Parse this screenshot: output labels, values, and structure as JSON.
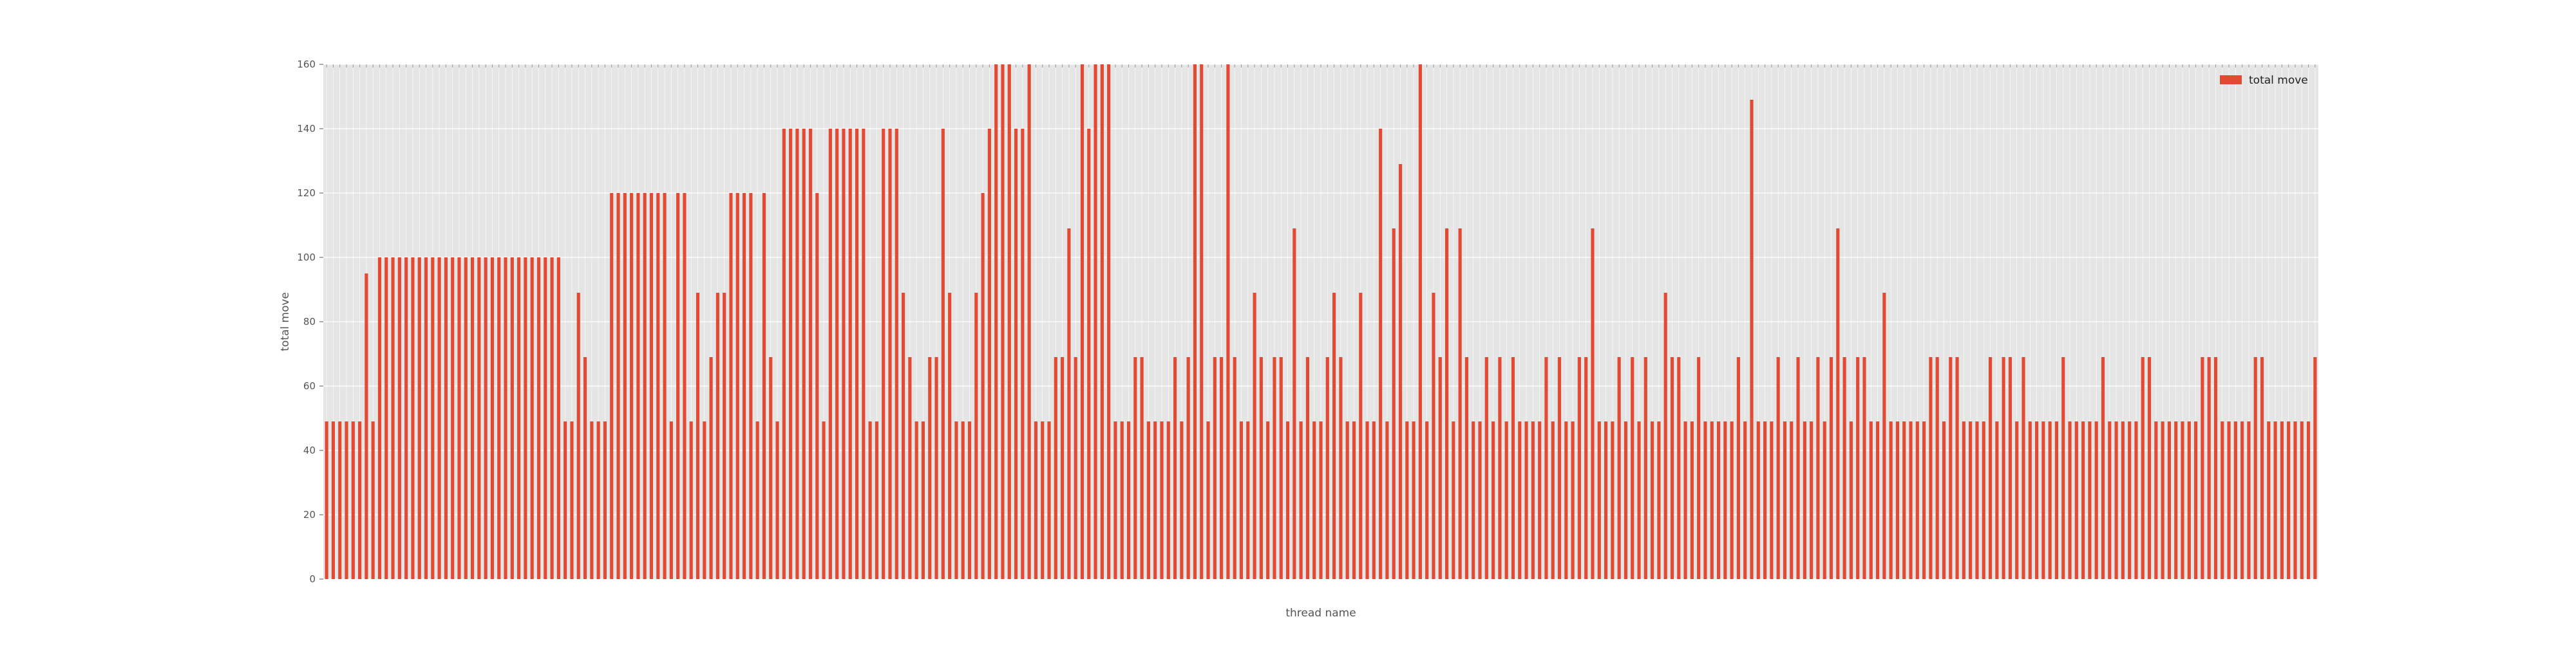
{
  "chart_data": {
    "type": "bar",
    "xlabel": "thread name",
    "ylabel": "total move",
    "ylim": [
      0,
      160
    ],
    "yticks": [
      0,
      20,
      40,
      60,
      80,
      100,
      120,
      140,
      160
    ],
    "grid": true,
    "legend_position": "top-right",
    "series": [
      {
        "name": "total move",
        "color": "#e24a33",
        "values": [
          49,
          49,
          49,
          49,
          49,
          49,
          95,
          49,
          100,
          100,
          100,
          100,
          100,
          100,
          100,
          100,
          100,
          100,
          100,
          100,
          100,
          100,
          100,
          100,
          100,
          100,
          100,
          100,
          100,
          100,
          100,
          100,
          100,
          100,
          100,
          100,
          49,
          49,
          89,
          69,
          49,
          49,
          49,
          120,
          120,
          120,
          120,
          120,
          120,
          120,
          120,
          120,
          49,
          120,
          120,
          49,
          89,
          49,
          69,
          89,
          89,
          120,
          120,
          120,
          120,
          49,
          120,
          69,
          49,
          140,
          140,
          140,
          140,
          140,
          120,
          49,
          140,
          140,
          140,
          140,
          140,
          140,
          49,
          49,
          140,
          140,
          140,
          89,
          69,
          49,
          49,
          69,
          69,
          140,
          89,
          49,
          49,
          49,
          89,
          120,
          140,
          160,
          160,
          160,
          140,
          140,
          160,
          49,
          49,
          49,
          69,
          69,
          109,
          69,
          160,
          140,
          160,
          160,
          160,
          49,
          49,
          49,
          69,
          69,
          49,
          49,
          49,
          49,
          69,
          49,
          69,
          160,
          160,
          49,
          69,
          69,
          160,
          69,
          49,
          49,
          89,
          69,
          49,
          69,
          69,
          49,
          109,
          49,
          69,
          49,
          49,
          69,
          89,
          69,
          49,
          49,
          89,
          49,
          49,
          140,
          49,
          109,
          129,
          49,
          49,
          160,
          49,
          89,
          69,
          109,
          49,
          109,
          69,
          49,
          49,
          69,
          49,
          69,
          49,
          69,
          49,
          49,
          49,
          49,
          69,
          49,
          69,
          49,
          49,
          69,
          69,
          109,
          49,
          49,
          49,
          69,
          49,
          69,
          49,
          69,
          49,
          49,
          89,
          69,
          69,
          49,
          49,
          69,
          49,
          49,
          49,
          49,
          49,
          69,
          49,
          149,
          49,
          49,
          49,
          69,
          49,
          49,
          69,
          49,
          49,
          69,
          49,
          69,
          109,
          69,
          49,
          69,
          69,
          49,
          49,
          89,
          49,
          49,
          49,
          49,
          49,
          49,
          69,
          69,
          49,
          69,
          69,
          49,
          49,
          49,
          49,
          69,
          49,
          69,
          69,
          49,
          69,
          49,
          49,
          49,
          49,
          49,
          69,
          49,
          49,
          49,
          49,
          49,
          69,
          49,
          49,
          49,
          49,
          49,
          69,
          69,
          49,
          49,
          49,
          49,
          49,
          49,
          49,
          69,
          69,
          69,
          49,
          49,
          49,
          49,
          49,
          69,
          69,
          49,
          49,
          49,
          49,
          49,
          49,
          49,
          69
        ]
      }
    ]
  }
}
